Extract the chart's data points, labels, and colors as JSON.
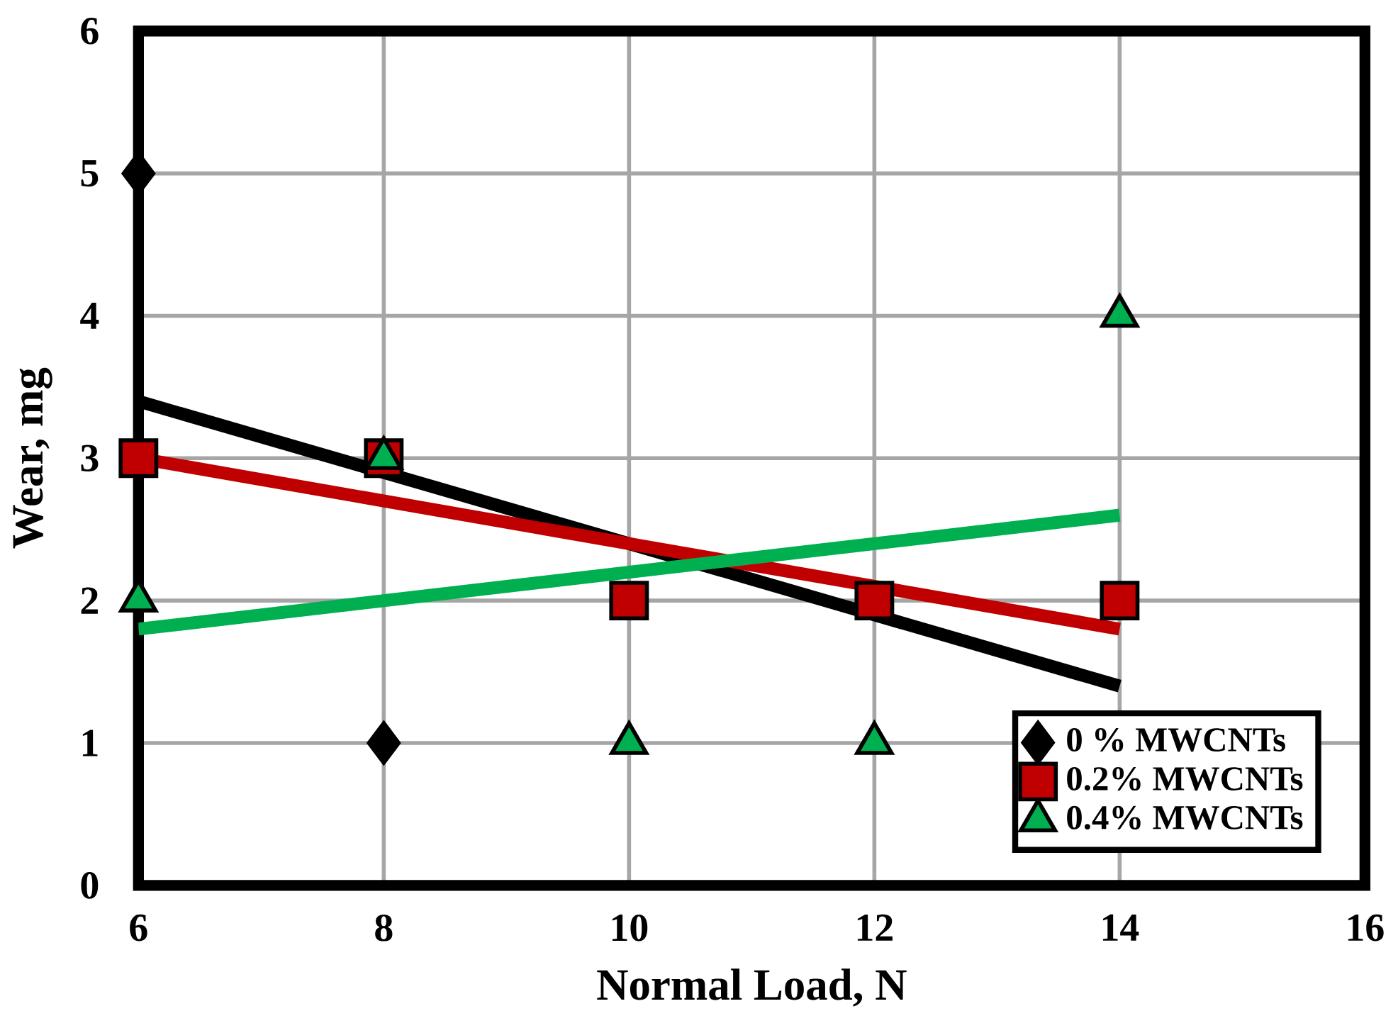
{
  "chart_data": {
    "type": "scatter",
    "xlabel": "Normal Load, N",
    "ylabel": "Wear, mg",
    "xlim": [
      6,
      16
    ],
    "xticks": [
      6,
      8,
      10,
      12,
      14,
      16
    ],
    "ylim": [
      0,
      6
    ],
    "yticks": [
      0,
      1,
      2,
      3,
      4,
      5,
      6
    ],
    "grid": true,
    "legend": "bottom right",
    "series": [
      {
        "name": "0 % MWCNTs",
        "marker": "diamond",
        "color": "#000000",
        "x": [
          6,
          8
        ],
        "values": [
          5,
          1
        ]
      },
      {
        "name": "0.2% MWCNTs",
        "marker": "square",
        "color": "#c00000",
        "x": [
          6,
          8,
          10,
          12,
          14
        ],
        "values": [
          3,
          3,
          2,
          2,
          2
        ]
      },
      {
        "name": "0.4% MWCNTs",
        "marker": "triangle",
        "color": "#00b050",
        "x": [
          6,
          8,
          10,
          12,
          14
        ],
        "values": [
          2,
          3,
          1,
          1,
          4
        ]
      },
      {
        "type": "line",
        "marker": "none",
        "line_style": "solid",
        "color": "#000000",
        "x": [
          6,
          14
        ],
        "values": [
          3.4,
          1.4
        ]
      },
      {
        "type": "line",
        "marker": "none",
        "line_style": "solid",
        "color": "#c00000",
        "x": [
          6,
          14
        ],
        "values": [
          3.0,
          1.8
        ]
      },
      {
        "type": "line",
        "marker": "none",
        "line_style": "solid",
        "color": "#00b050",
        "x": [
          6,
          14
        ],
        "values": [
          1.8,
          2.6
        ]
      }
    ]
  }
}
